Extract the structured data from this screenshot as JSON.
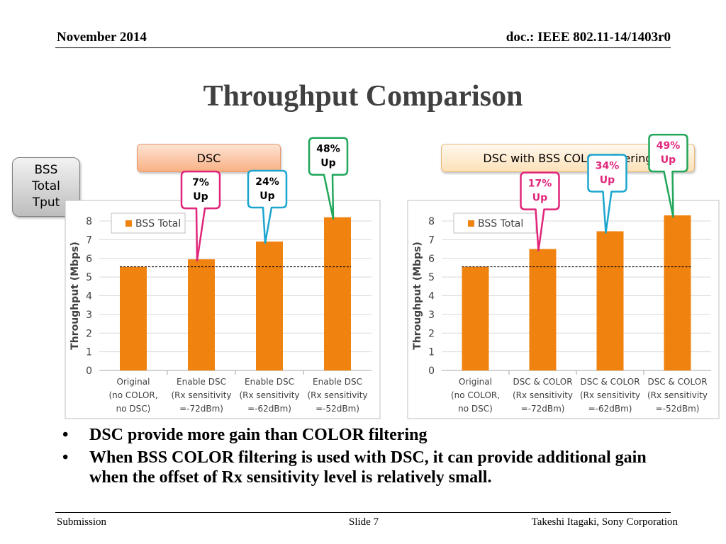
{
  "header": {
    "date": "November 2014",
    "doc": "doc.: IEEE 802.11-14/1403r0"
  },
  "slide_title": "Throughput Comparison",
  "tags": {
    "left": "DSC",
    "right": "DSC with BSS COLOR Filtering"
  },
  "side_label": [
    "BSS",
    "Total",
    "Tput"
  ],
  "chart_data": [
    {
      "type": "bar",
      "title": "",
      "ylabel": "Throughput (Mbps)",
      "ylim": [
        0,
        8
      ],
      "yticks": [
        "0",
        "1",
        "2",
        "3",
        "4",
        "5",
        "6",
        "7",
        "8"
      ],
      "legend": "BSS Total",
      "legend_position": "top-left",
      "grid": true,
      "bar_color": "#f0820f",
      "categories": [
        [
          "Original",
          "(no COLOR,",
          "no DSC)"
        ],
        [
          "Enable DSC",
          "(Rx sensitivity",
          "=-72dBm)"
        ],
        [
          "Enable DSC",
          "(Rx sensitivity",
          "=-62dBm)"
        ],
        [
          "Enable DSC",
          "(Rx sensitivity",
          "=-52dBm)"
        ]
      ],
      "series": [
        {
          "name": "BSS Total",
          "values": [
            5.55,
            5.95,
            6.9,
            8.2
          ]
        }
      ],
      "reference_line": 5.55,
      "annotations": [
        {
          "bar": 1,
          "lines": [
            "7%",
            "Up"
          ],
          "border": "#e0257a",
          "text_color": "#000000"
        },
        {
          "bar": 2,
          "lines": [
            "24%",
            "Up"
          ],
          "border": "#1ba6cf",
          "text_color": "#000000"
        },
        {
          "bar": 3,
          "lines": [
            "48%",
            "Up"
          ],
          "border": "#21a65a",
          "text_color": "#000000"
        }
      ]
    },
    {
      "type": "bar",
      "title": "",
      "ylabel": "Throughput (Mbps)",
      "ylim": [
        0,
        8
      ],
      "yticks": [
        "0",
        "1",
        "2",
        "3",
        "4",
        "5",
        "6",
        "7",
        "8"
      ],
      "legend": "BSS Total",
      "legend_position": "top-left",
      "grid": true,
      "bar_color": "#f0820f",
      "categories": [
        [
          "Original",
          "(no COLOR,",
          "no DSC)"
        ],
        [
          "DSC & COLOR",
          "(Rx sensitivity",
          "=-72dBm)"
        ],
        [
          "DSC & COLOR",
          "(Rx sensitivity",
          "=-62dBm)"
        ],
        [
          "DSC & COLOR",
          "(Rx sensitivity",
          "=-52dBm)"
        ]
      ],
      "series": [
        {
          "name": "BSS Total",
          "values": [
            5.55,
            6.5,
            7.45,
            8.3
          ]
        }
      ],
      "reference_line": 5.55,
      "annotations": [
        {
          "bar": 1,
          "lines": [
            "17%",
            "Up"
          ],
          "border": "#e0257a",
          "text_color": "#e0257a"
        },
        {
          "bar": 2,
          "lines": [
            "34%",
            "Up"
          ],
          "border": "#1ba6cf",
          "text_color": "#e0257a"
        },
        {
          "bar": 3,
          "lines": [
            "49%",
            "Up"
          ],
          "border": "#21a65a",
          "text_color": "#e0257a"
        }
      ]
    }
  ],
  "bullets": [
    "DSC provide more gain than COLOR filtering",
    "When BSS COLOR filtering is used with DSC, it can provide additional gain when the offset of Rx sensitivity level is relatively small."
  ],
  "bullet_symbol": "•",
  "footer": {
    "left": "Submission",
    "center": "Slide 7",
    "right": "Takeshi Itagaki, Sony Corporation"
  }
}
